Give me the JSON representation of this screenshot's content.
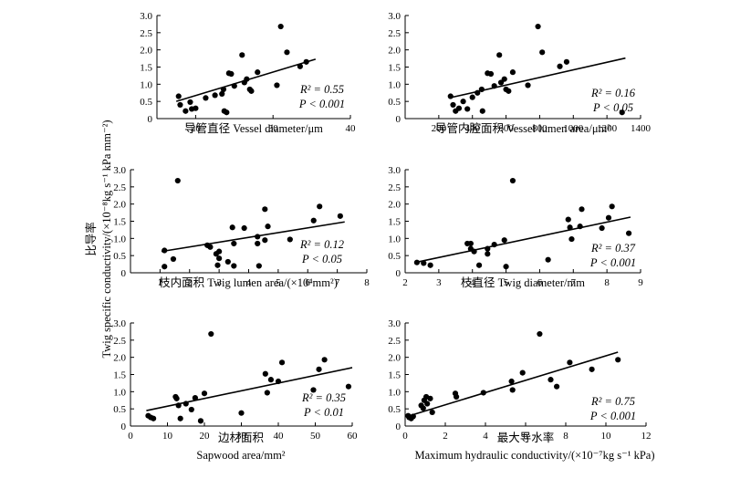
{
  "y_axis_label": {
    "chinese": "比导率",
    "english": "Twig specific conductivity/(×10⁻⁸kg s⁻¹ kPa mm⁻²)"
  },
  "chart_data": [
    {
      "type": "scatter",
      "xlabel": "导管直径 Vessel diameter/μm",
      "xlabel_line2": "",
      "xlim": [
        15,
        40
      ],
      "xticks": [
        20,
        30,
        40
      ],
      "ylim": [
        0,
        3.0
      ],
      "yticks": [
        "0",
        "0.5",
        "1.0",
        "1.5",
        "2.0",
        "2.5",
        "3.0"
      ],
      "r2_label": "R² = 0.55",
      "p_label": "P < 0.001",
      "points": [
        [
          17.8,
          0.65
        ],
        [
          18.0,
          0.4
        ],
        [
          18.7,
          0.22
        ],
        [
          19.3,
          0.48
        ],
        [
          19.5,
          0.28
        ],
        [
          20.0,
          0.3
        ],
        [
          21.3,
          0.6
        ],
        [
          22.5,
          0.68
        ],
        [
          23.4,
          0.72
        ],
        [
          23.6,
          0.85
        ],
        [
          23.7,
          0.22
        ],
        [
          24.0,
          0.18
        ],
        [
          24.3,
          1.32
        ],
        [
          24.6,
          1.3
        ],
        [
          25.0,
          0.95
        ],
        [
          26.0,
          1.85
        ],
        [
          26.3,
          1.05
        ],
        [
          26.6,
          1.15
        ],
        [
          27.0,
          0.85
        ],
        [
          27.2,
          0.8
        ],
        [
          28.0,
          1.35
        ],
        [
          30.5,
          0.97
        ],
        [
          31.0,
          2.68
        ],
        [
          31.8,
          1.93
        ],
        [
          33.5,
          1.52
        ],
        [
          34.3,
          1.65
        ]
      ],
      "fit": [
        [
          17.5,
          0.5
        ],
        [
          35.5,
          1.73
        ]
      ]
    },
    {
      "type": "scatter",
      "xlabel": "导管内腔面积 Vessel lumen area/μm²",
      "xlabel_line2": "",
      "xlim": [
        0,
        1400
      ],
      "xticks": [
        200,
        400,
        600,
        800,
        1000,
        1200,
        1400
      ],
      "ylim": [
        0,
        3.0
      ],
      "yticks": [
        "0",
        "0.5",
        "1.0",
        "1.5",
        "2.0",
        "2.5",
        "3.0"
      ],
      "r2_label": "R² = 0.16",
      "p_label": "P < 0.05",
      "points": [
        [
          270,
          0.65
        ],
        [
          285,
          0.4
        ],
        [
          300,
          0.22
        ],
        [
          320,
          0.3
        ],
        [
          345,
          0.5
        ],
        [
          370,
          0.28
        ],
        [
          400,
          0.62
        ],
        [
          430,
          0.75
        ],
        [
          455,
          0.85
        ],
        [
          460,
          0.22
        ],
        [
          490,
          1.32
        ],
        [
          510,
          1.3
        ],
        [
          530,
          0.95
        ],
        [
          560,
          1.85
        ],
        [
          570,
          1.05
        ],
        [
          590,
          1.15
        ],
        [
          600,
          0.85
        ],
        [
          615,
          0.8
        ],
        [
          640,
          1.35
        ],
        [
          730,
          0.97
        ],
        [
          790,
          2.68
        ],
        [
          815,
          1.93
        ],
        [
          920,
          1.52
        ],
        [
          960,
          1.65
        ],
        [
          1290,
          0.18
        ]
      ],
      "fit": [
        [
          260,
          0.6
        ],
        [
          1310,
          1.76
        ]
      ]
    },
    {
      "type": "scatter",
      "xlabel": "枝内面积 Twig lumen area/(×10⁴mm²)",
      "xlabel_line2": "",
      "xlim": [
        0,
        8
      ],
      "xticks": [
        1,
        2,
        3,
        4,
        5,
        6,
        7,
        8
      ],
      "ylim": [
        0,
        3.0
      ],
      "yticks": [
        "0",
        "0.5",
        "1.0",
        "1.5",
        "2.0",
        "2.5",
        "3.0"
      ],
      "r2_label": "R² = 0.12",
      "p_label": "P < 0.05",
      "points": [
        [
          1.15,
          0.65
        ],
        [
          1.15,
          0.18
        ],
        [
          1.45,
          0.4
        ],
        [
          1.6,
          2.68
        ],
        [
          2.6,
          0.8
        ],
        [
          2.7,
          0.75
        ],
        [
          2.9,
          0.55
        ],
        [
          2.95,
          0.22
        ],
        [
          3.0,
          0.62
        ],
        [
          3.0,
          0.42
        ],
        [
          3.3,
          0.32
        ],
        [
          3.45,
          1.32
        ],
        [
          3.5,
          0.85
        ],
        [
          3.5,
          0.2
        ],
        [
          3.85,
          1.3
        ],
        [
          4.3,
          1.05
        ],
        [
          4.3,
          0.85
        ],
        [
          4.35,
          0.2
        ],
        [
          4.55,
          0.95
        ],
        [
          4.55,
          1.85
        ],
        [
          4.65,
          1.35
        ],
        [
          5.4,
          0.97
        ],
        [
          6.2,
          1.52
        ],
        [
          6.4,
          1.93
        ],
        [
          7.1,
          1.65
        ]
      ],
      "fit": [
        [
          1.05,
          0.62
        ],
        [
          7.25,
          1.48
        ]
      ]
    },
    {
      "type": "scatter",
      "xlabel": "枝直径 Twig diameter/mm",
      "xlabel_line2": "",
      "xlim": [
        2,
        9
      ],
      "xticks": [
        2,
        3,
        4,
        5,
        6,
        7,
        8,
        9
      ],
      "ylim": [
        0,
        3.0
      ],
      "yticks": [
        "0",
        "0.5",
        "1.0",
        "1.5",
        "2.0",
        "2.5",
        "3.0"
      ],
      "r2_label": "R² = 0.37",
      "p_label": "P < 0.001",
      "points": [
        [
          2.35,
          0.3
        ],
        [
          2.55,
          0.28
        ],
        [
          2.75,
          0.22
        ],
        [
          3.85,
          0.85
        ],
        [
          3.95,
          0.85
        ],
        [
          3.95,
          0.7
        ],
        [
          4.05,
          0.62
        ],
        [
          4.2,
          0.22
        ],
        [
          4.45,
          0.7
        ],
        [
          4.45,
          0.55
        ],
        [
          4.65,
          0.82
        ],
        [
          4.95,
          0.95
        ],
        [
          5.0,
          0.18
        ],
        [
          5.2,
          2.68
        ],
        [
          6.25,
          0.38
        ],
        [
          6.85,
          1.55
        ],
        [
          6.9,
          1.32
        ],
        [
          6.95,
          0.98
        ],
        [
          7.2,
          1.35
        ],
        [
          7.25,
          1.85
        ],
        [
          7.85,
          1.3
        ],
        [
          8.05,
          1.6
        ],
        [
          8.15,
          1.93
        ],
        [
          8.65,
          1.15
        ]
      ],
      "fit": [
        [
          2.3,
          0.3
        ],
        [
          8.7,
          1.62
        ]
      ]
    },
    {
      "type": "scatter",
      "xlabel": "边材面积",
      "xlabel_line2": "Sapwood area/mm²",
      "xlim": [
        0,
        60
      ],
      "xticks": [
        0,
        10,
        20,
        30,
        40,
        50,
        60
      ],
      "ylim": [
        0,
        3.0
      ],
      "yticks": [
        "0",
        "0.5",
        "1.0",
        "1.5",
        "2.0",
        "2.5",
        "3.0"
      ],
      "r2_label": "R² = 0.35",
      "p_label": "P < 0.01",
      "points": [
        [
          4.8,
          0.3
        ],
        [
          5.5,
          0.25
        ],
        [
          6.2,
          0.22
        ],
        [
          12.2,
          0.85
        ],
        [
          12.5,
          0.8
        ],
        [
          13.0,
          0.6
        ],
        [
          13.5,
          0.22
        ],
        [
          15.0,
          0.65
        ],
        [
          16.5,
          0.48
        ],
        [
          17.5,
          0.82
        ],
        [
          19.0,
          0.15
        ],
        [
          20.0,
          0.95
        ],
        [
          21.8,
          2.68
        ],
        [
          30.0,
          0.38
        ],
        [
          36.5,
          1.52
        ],
        [
          37.0,
          0.97
        ],
        [
          38.0,
          1.35
        ],
        [
          40.0,
          1.3
        ],
        [
          41.0,
          1.85
        ],
        [
          49.5,
          1.05
        ],
        [
          51.0,
          1.65
        ],
        [
          52.5,
          1.93
        ],
        [
          59.0,
          1.15
        ]
      ],
      "fit": [
        [
          4.3,
          0.45
        ],
        [
          60.0,
          1.7
        ]
      ]
    },
    {
      "type": "scatter",
      "xlabel": "最大导水率",
      "xlabel_line2": "Maximum hydraulic conductivity/(×10⁻⁷kg s⁻¹ kPa)",
      "xlim": [
        0,
        12
      ],
      "xticks": [
        0,
        2,
        4,
        6,
        8,
        10,
        12
      ],
      "ylim": [
        0,
        3.0
      ],
      "yticks": [
        "0",
        "0.5",
        "1.0",
        "1.5",
        "2.0",
        "2.5",
        "3.0"
      ],
      "r2_label": "R² = 0.75",
      "p_label": "P < 0.001",
      "points": [
        [
          0.15,
          0.3
        ],
        [
          0.2,
          0.25
        ],
        [
          0.3,
          0.22
        ],
        [
          0.4,
          0.28
        ],
        [
          0.8,
          0.6
        ],
        [
          0.9,
          0.52
        ],
        [
          0.95,
          0.75
        ],
        [
          1.05,
          0.85
        ],
        [
          1.1,
          0.65
        ],
        [
          1.25,
          0.8
        ],
        [
          1.35,
          0.4
        ],
        [
          2.5,
          0.95
        ],
        [
          2.55,
          0.85
        ],
        [
          3.9,
          0.97
        ],
        [
          5.3,
          1.3
        ],
        [
          5.35,
          1.05
        ],
        [
          5.85,
          1.55
        ],
        [
          6.7,
          2.68
        ],
        [
          7.25,
          1.35
        ],
        [
          7.55,
          1.15
        ],
        [
          8.2,
          1.85
        ],
        [
          9.3,
          1.65
        ],
        [
          10.6,
          1.93
        ]
      ],
      "fit": [
        [
          0.1,
          0.28
        ],
        [
          10.6,
          2.15
        ]
      ]
    }
  ]
}
